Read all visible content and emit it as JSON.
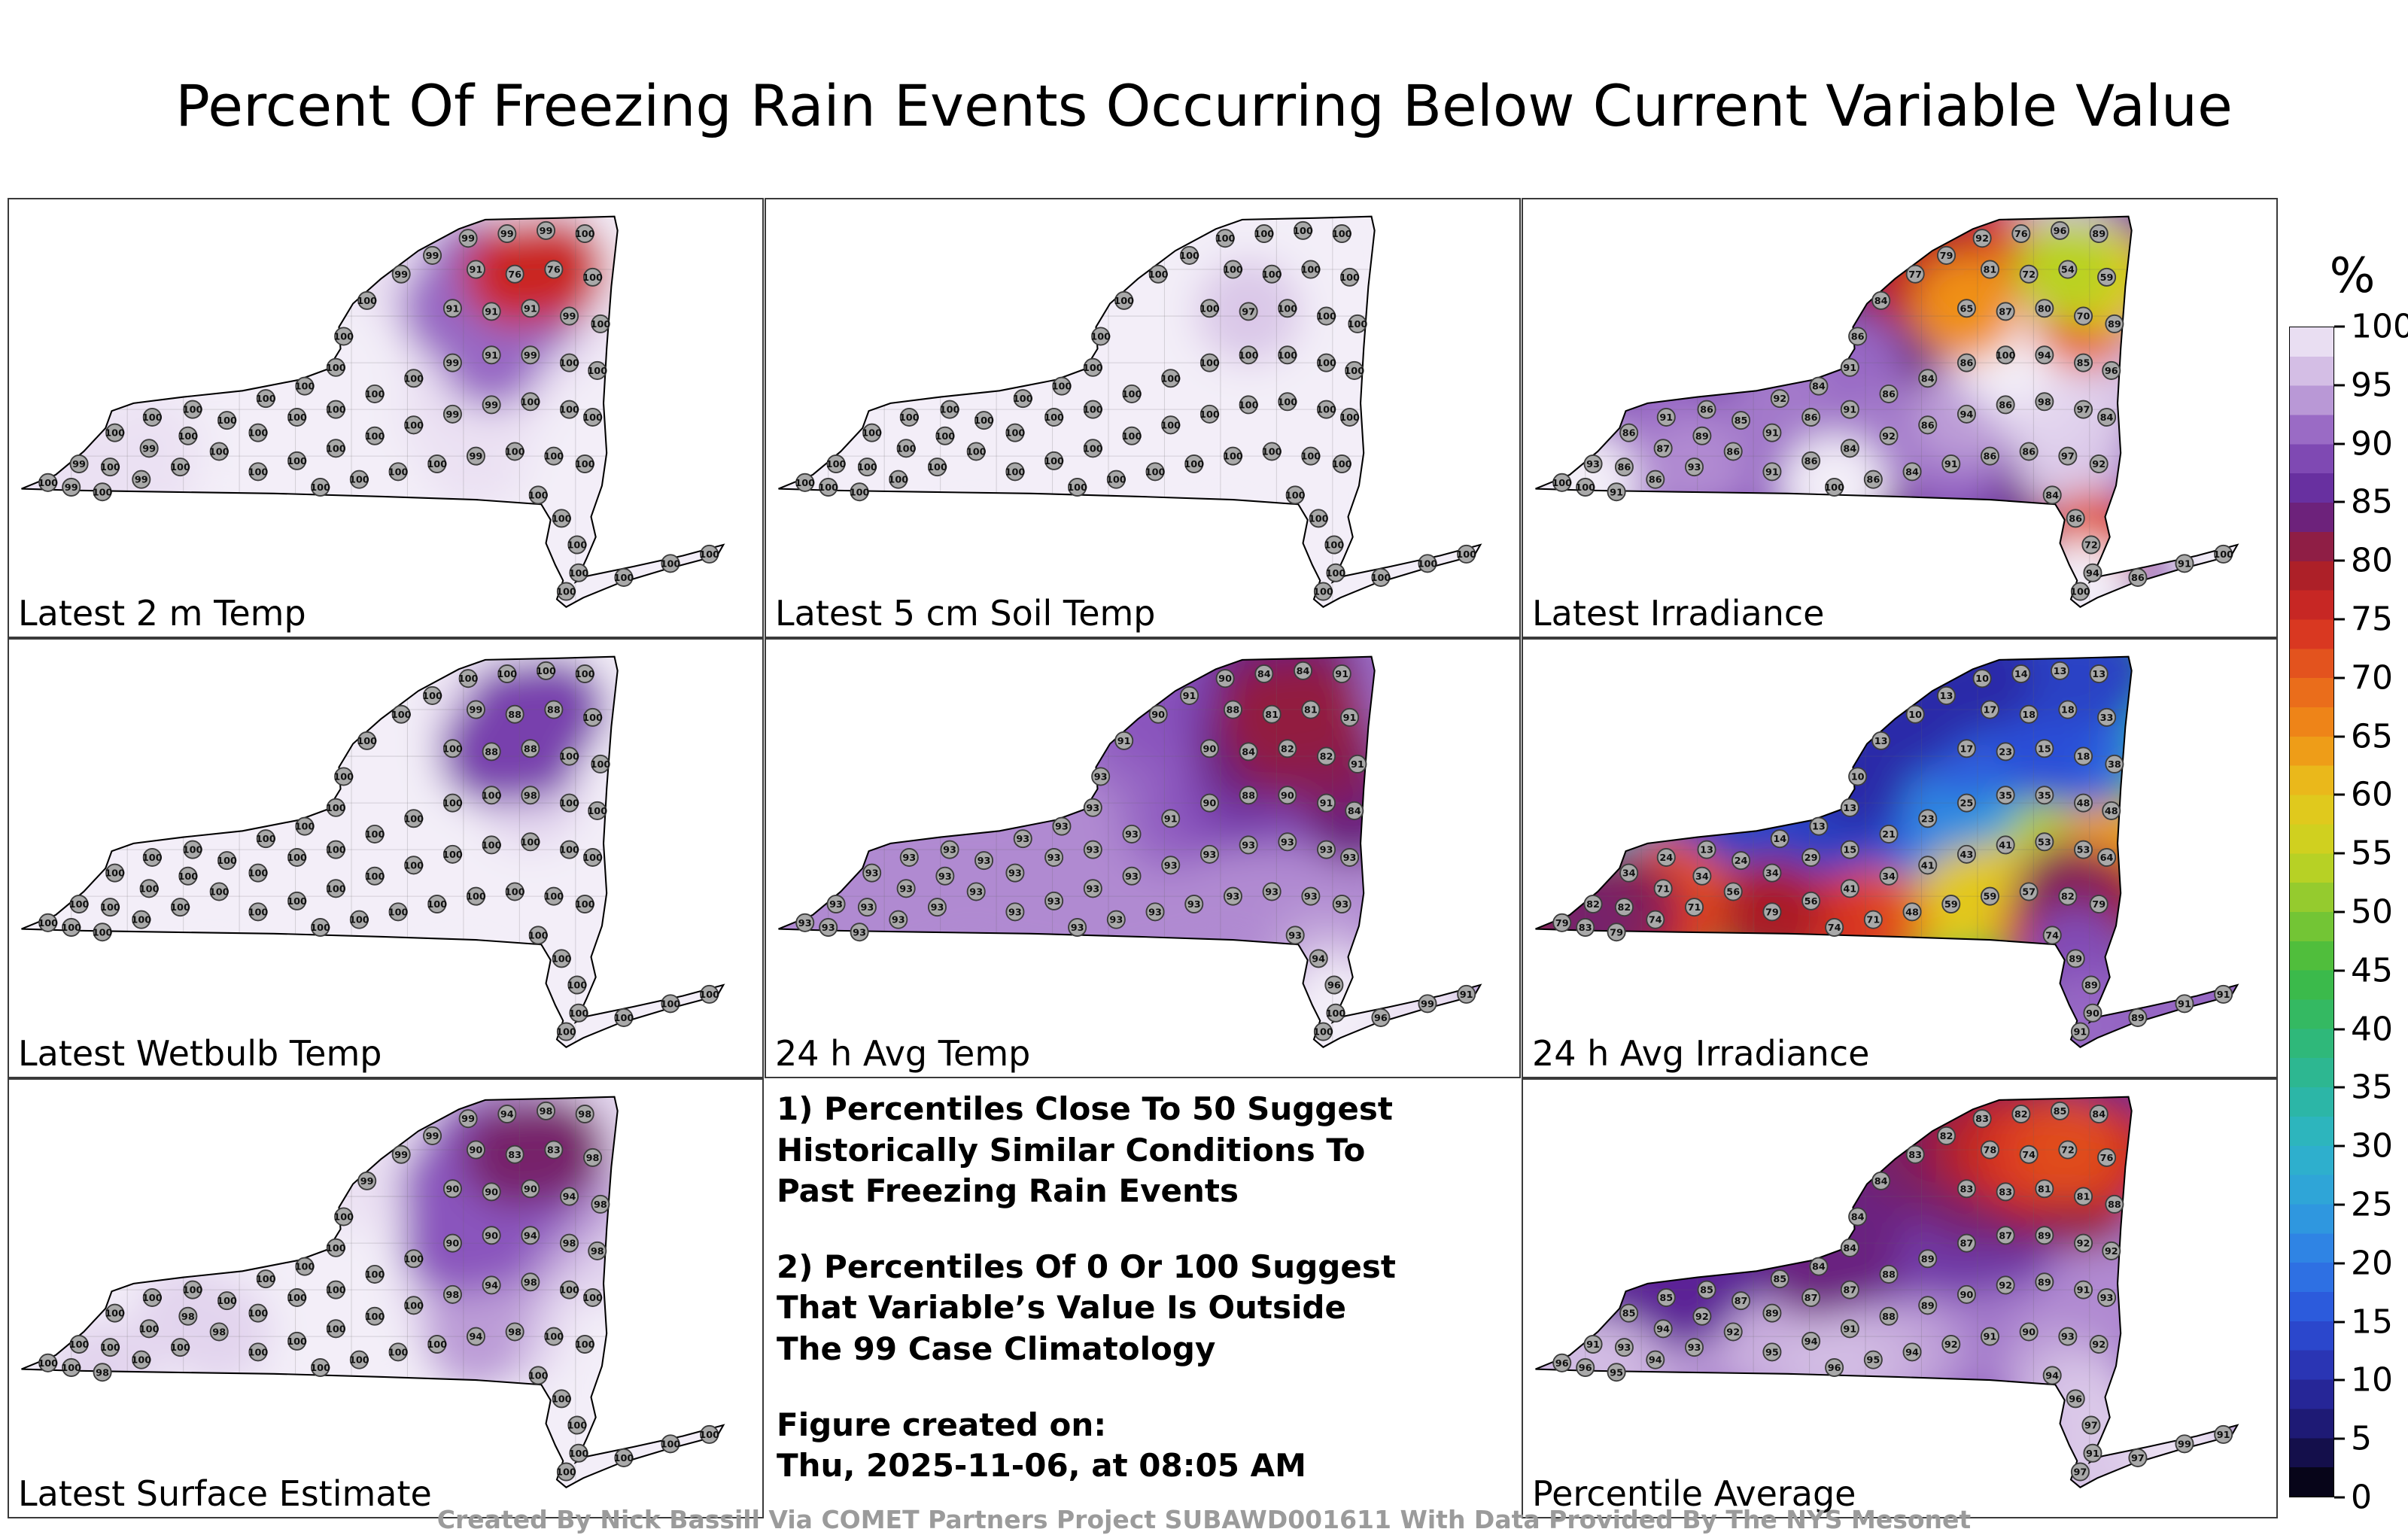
{
  "title": "Percent Of Freezing Rain Events Occurring Below Current Variable Value",
  "footer": "Created By Nick Bassill Via COMET Partners Project SUBAWD001611 With Data Provided By The NYS Mesonet",
  "notes": {
    "note1": "1) Percentiles Close To 50 Suggest\nHistorically Similar Conditions To\nPast Freezing Rain Events",
    "note2": "2) Percentiles Of 0 Or 100 Suggest\nThat Variable’s Value Is Outside\nThe 99 Case Climatology",
    "created": "Figure created on:\nThu, 2025-11-06, at 08:05 AM"
  },
  "colorbar": {
    "label": "%",
    "ticks": [
      "100",
      "95",
      "90",
      "85",
      "80",
      "75",
      "70",
      "65",
      "60",
      "55",
      "50",
      "45",
      "40",
      "35",
      "30",
      "25",
      "20",
      "15",
      "10",
      "5",
      "0"
    ],
    "scale": [
      [
        0,
        "#000000"
      ],
      [
        5,
        "#1a1464"
      ],
      [
        10,
        "#2a2ca8"
      ],
      [
        15,
        "#2b50d8"
      ],
      [
        20,
        "#2f7ae6"
      ],
      [
        25,
        "#2fa0dc"
      ],
      [
        30,
        "#2db4c8"
      ],
      [
        35,
        "#2cb69c"
      ],
      [
        40,
        "#30b86e"
      ],
      [
        45,
        "#3fbb3f"
      ],
      [
        50,
        "#84c832"
      ],
      [
        55,
        "#c8d420"
      ],
      [
        60,
        "#e8c51c"
      ],
      [
        65,
        "#f09016"
      ],
      [
        70,
        "#e8611c"
      ],
      [
        75,
        "#d42a22"
      ],
      [
        80,
        "#a01c2a"
      ],
      [
        85,
        "#5c2496"
      ],
      [
        90,
        "#8a55bd"
      ],
      [
        95,
        "#c9aede"
      ],
      [
        100,
        "#f3eef8"
      ]
    ]
  },
  "chart_data": {
    "type": "heatmap",
    "unit": "%",
    "region": "New York State",
    "value_range": [
      0,
      100
    ],
    "notes_cell": {
      "row": 2,
      "col": 1
    },
    "station_positions": [
      [
        25,
        182
      ],
      [
        45,
        170
      ],
      [
        68,
        150
      ],
      [
        92,
        140
      ],
      [
        118,
        135
      ],
      [
        40,
        185
      ],
      [
        65,
        172
      ],
      [
        90,
        160
      ],
      [
        115,
        152
      ],
      [
        140,
        142
      ],
      [
        60,
        188
      ],
      [
        85,
        180
      ],
      [
        110,
        172
      ],
      [
        135,
        162
      ],
      [
        160,
        150
      ],
      [
        185,
        140
      ],
      [
        165,
        128
      ],
      [
        190,
        120
      ],
      [
        210,
        108
      ],
      [
        215,
        88
      ],
      [
        230,
        65
      ],
      [
        252,
        48
      ],
      [
        272,
        36
      ],
      [
        295,
        25
      ],
      [
        320,
        22
      ],
      [
        345,
        20
      ],
      [
        370,
        22
      ],
      [
        300,
        45
      ],
      [
        325,
        48
      ],
      [
        350,
        45
      ],
      [
        375,
        50
      ],
      [
        285,
        70
      ],
      [
        310,
        72
      ],
      [
        335,
        70
      ],
      [
        360,
        75
      ],
      [
        380,
        80
      ],
      [
        210,
        135
      ],
      [
        235,
        125
      ],
      [
        260,
        115
      ],
      [
        285,
        105
      ],
      [
        310,
        100
      ],
      [
        335,
        100
      ],
      [
        360,
        105
      ],
      [
        378,
        110
      ],
      [
        160,
        175
      ],
      [
        185,
        168
      ],
      [
        210,
        160
      ],
      [
        235,
        152
      ],
      [
        260,
        145
      ],
      [
        285,
        138
      ],
      [
        310,
        132
      ],
      [
        335,
        130
      ],
      [
        360,
        135
      ],
      [
        375,
        140
      ],
      [
        200,
        185
      ],
      [
        225,
        180
      ],
      [
        250,
        175
      ],
      [
        275,
        170
      ],
      [
        300,
        165
      ],
      [
        325,
        162
      ],
      [
        350,
        165
      ],
      [
        370,
        170
      ],
      [
        340,
        190
      ],
      [
        355,
        205
      ],
      [
        365,
        222
      ],
      [
        366,
        240
      ],
      [
        358,
        252
      ],
      [
        395,
        243
      ],
      [
        425,
        234
      ],
      [
        450,
        228
      ]
    ],
    "panels": [
      {
        "label": "Latest 2 m Temp",
        "slug": "latest-2m-temp",
        "row": 0,
        "col": 0,
        "values": [
          100,
          99,
          100,
          100,
          100,
          99,
          100,
          99,
          100,
          100,
          100,
          99,
          100,
          100,
          100,
          100,
          100,
          100,
          100,
          100,
          100,
          99,
          99,
          99,
          99,
          99,
          100,
          91,
          76,
          76,
          100,
          91,
          91,
          91,
          99,
          100,
          100,
          100,
          100,
          99,
          91,
          99,
          100,
          100,
          100,
          100,
          100,
          100,
          100,
          99,
          99,
          100,
          100,
          100,
          100,
          100,
          100,
          100,
          99,
          100,
          100,
          100,
          100,
          100,
          100,
          100,
          100,
          100,
          100,
          100
        ]
      },
      {
        "label": "Latest 5 cm Soil Temp",
        "slug": "latest-5cm-soil-temp",
        "row": 0,
        "col": 1,
        "values": [
          100,
          100,
          100,
          100,
          100,
          100,
          100,
          100,
          100,
          100,
          100,
          100,
          100,
          100,
          100,
          100,
          100,
          100,
          100,
          100,
          100,
          100,
          100,
          100,
          100,
          100,
          100,
          100,
          100,
          100,
          100,
          100,
          97,
          100,
          100,
          100,
          100,
          100,
          100,
          100,
          100,
          100,
          100,
          100,
          100,
          100,
          100,
          100,
          100,
          100,
          100,
          100,
          100,
          100,
          100,
          100,
          100,
          100,
          100,
          100,
          100,
          100,
          100,
          100,
          100,
          100,
          100,
          100,
          100,
          100
        ]
      },
      {
        "label": "Latest Irradiance",
        "slug": "latest-irradiance",
        "row": 0,
        "col": 2,
        "values": [
          100,
          93,
          86,
          91,
          86,
          100,
          86,
          87,
          89,
          85,
          91,
          86,
          93,
          86,
          91,
          86,
          92,
          84,
          91,
          86,
          84,
          77,
          79,
          92,
          76,
          96,
          89,
          81,
          72,
          54,
          59,
          65,
          87,
          80,
          70,
          89,
          91,
          86,
          84,
          86,
          100,
          94,
          85,
          96,
          91,
          86,
          84,
          92,
          86,
          94,
          86,
          98,
          97,
          84,
          100,
          86,
          84,
          91,
          86,
          86,
          97,
          92,
          84,
          86,
          72,
          94,
          100,
          86,
          91,
          100
        ]
      },
      {
        "label": "Latest Wetbulb Temp",
        "slug": "latest-wetbulb-temp",
        "row": 1,
        "col": 0,
        "values": [
          100,
          100,
          100,
          100,
          100,
          100,
          100,
          100,
          100,
          100,
          100,
          100,
          100,
          100,
          100,
          100,
          100,
          100,
          100,
          100,
          100,
          100,
          100,
          100,
          100,
          100,
          100,
          99,
          88,
          88,
          100,
          100,
          88,
          88,
          100,
          100,
          100,
          100,
          100,
          100,
          100,
          98,
          100,
          100,
          100,
          100,
          100,
          100,
          100,
          100,
          100,
          100,
          100,
          100,
          100,
          100,
          100,
          100,
          100,
          100,
          100,
          100,
          100,
          100,
          100,
          100,
          100,
          100,
          100,
          100
        ]
      },
      {
        "label": "24 h Avg Temp",
        "slug": "24h-avg-temp",
        "row": 1,
        "col": 1,
        "values": [
          93,
          93,
          93,
          93,
          93,
          93,
          93,
          93,
          93,
          93,
          93,
          93,
          93,
          93,
          93,
          93,
          93,
          93,
          93,
          93,
          91,
          90,
          91,
          90,
          84,
          84,
          91,
          88,
          81,
          81,
          91,
          90,
          84,
          82,
          82,
          91,
          93,
          93,
          91,
          90,
          88,
          90,
          91,
          84,
          93,
          93,
          93,
          93,
          93,
          93,
          93,
          93,
          93,
          93,
          93,
          93,
          93,
          93,
          93,
          93,
          93,
          93,
          93,
          94,
          96,
          100,
          100,
          96,
          99,
          91
        ]
      },
      {
        "label": "24 h Avg Irradiance",
        "slug": "24h-avg-irradiance",
        "row": 1,
        "col": 2,
        "values": [
          79,
          82,
          34,
          24,
          13,
          83,
          82,
          71,
          34,
          24,
          79,
          74,
          71,
          56,
          34,
          29,
          14,
          13,
          13,
          10,
          13,
          10,
          13,
          10,
          14,
          13,
          13,
          17,
          18,
          18,
          33,
          17,
          23,
          15,
          18,
          38,
          15,
          21,
          23,
          25,
          35,
          35,
          48,
          48,
          79,
          56,
          41,
          34,
          41,
          43,
          41,
          53,
          53,
          64,
          74,
          71,
          48,
          59,
          59,
          57,
          82,
          79,
          74,
          89,
          89,
          90,
          91,
          89,
          91,
          91
        ]
      },
      {
        "label": "Latest Surface Estimate",
        "slug": "latest-surface-estimate",
        "row": 2,
        "col": 0,
        "values": [
          100,
          100,
          100,
          100,
          100,
          100,
          100,
          100,
          98,
          100,
          98,
          100,
          100,
          98,
          100,
          100,
          100,
          100,
          100,
          100,
          99,
          99,
          99,
          99,
          94,
          98,
          98,
          90,
          83,
          83,
          98,
          90,
          90,
          90,
          94,
          98,
          100,
          100,
          100,
          90,
          90,
          94,
          98,
          98,
          100,
          100,
          100,
          100,
          100,
          98,
          94,
          98,
          100,
          100,
          100,
          100,
          100,
          100,
          94,
          98,
          100,
          100,
          100,
          100,
          100,
          100,
          100,
          100,
          100,
          100
        ]
      },
      {
        "label": "Percentile Average",
        "slug": "percentile-average",
        "row": 2,
        "col": 2,
        "values": [
          96,
          91,
          85,
          85,
          85,
          96,
          93,
          94,
          92,
          87,
          95,
          94,
          93,
          92,
          89,
          87,
          85,
          84,
          84,
          84,
          84,
          83,
          82,
          83,
          82,
          85,
          84,
          78,
          74,
          72,
          76,
          83,
          83,
          81,
          81,
          88,
          87,
          88,
          89,
          87,
          87,
          89,
          92,
          92,
          95,
          94,
          91,
          88,
          89,
          90,
          92,
          89,
          91,
          93,
          96,
          95,
          94,
          92,
          91,
          90,
          93,
          92,
          94,
          96,
          97,
          91,
          97,
          97,
          99,
          91
        ]
      }
    ]
  }
}
